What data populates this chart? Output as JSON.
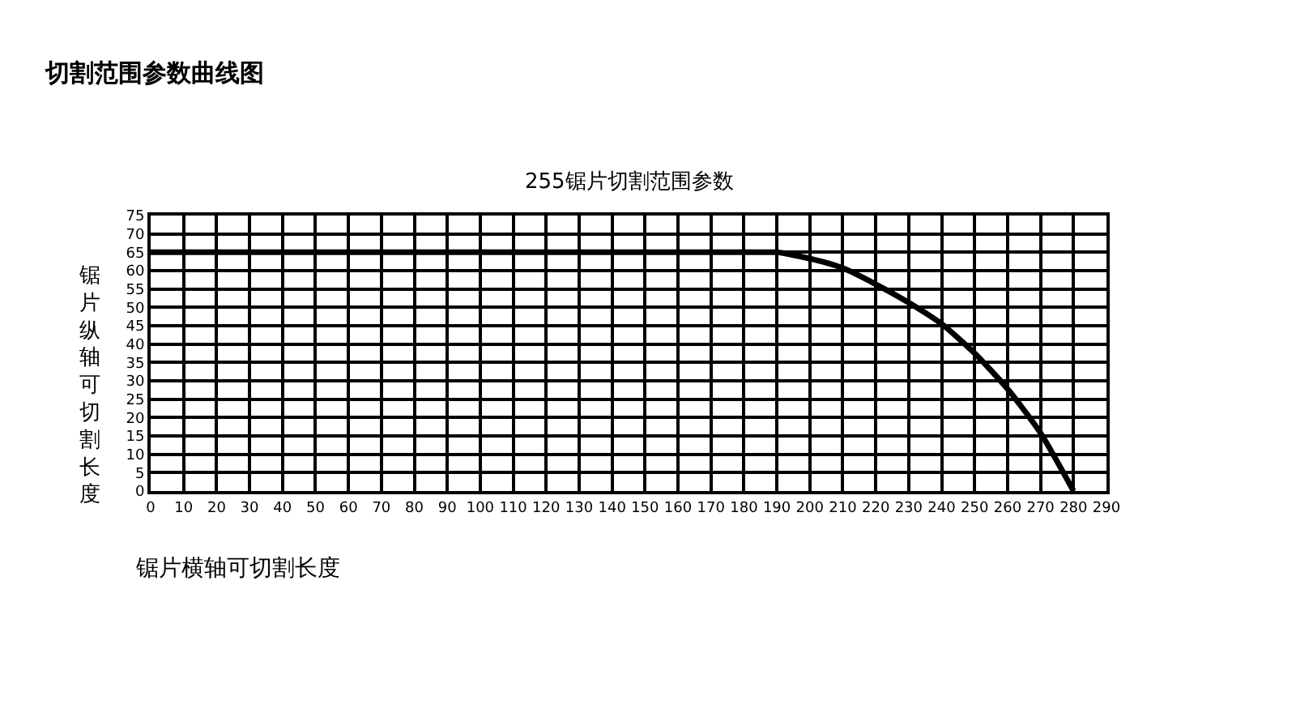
{
  "chart_data": {
    "type": "line",
    "title": "切割范围参数曲线图",
    "subtitle": "255锯片切割范围参数",
    "xlabel": "锯片横轴可切割长度",
    "ylabel": "锯片纵轴可切割长度",
    "x": [
      0,
      185,
      190,
      200,
      210,
      220,
      230,
      240,
      250,
      260,
      270,
      280
    ],
    "series": [
      {
        "color": "#000000",
        "values": [
          65,
          65,
          65,
          63.3,
          60.7,
          56.3,
          51.3,
          45.5,
          37.5,
          27.8,
          15.8,
          0
        ]
      }
    ],
    "xlim": [
      0,
      290
    ],
    "xticks": [
      0,
      10,
      20,
      30,
      40,
      50,
      60,
      70,
      80,
      90,
      100,
      110,
      120,
      130,
      140,
      150,
      160,
      170,
      180,
      190,
      200,
      210,
      220,
      230,
      240,
      250,
      260,
      270,
      280,
      290
    ],
    "ylim": [
      0,
      75
    ],
    "yticks": [
      0,
      5,
      10,
      15,
      20,
      25,
      30,
      35,
      40,
      45,
      50,
      55,
      60,
      65,
      70,
      75
    ],
    "grid": true,
    "marker": "none",
    "line_style": "solid"
  }
}
